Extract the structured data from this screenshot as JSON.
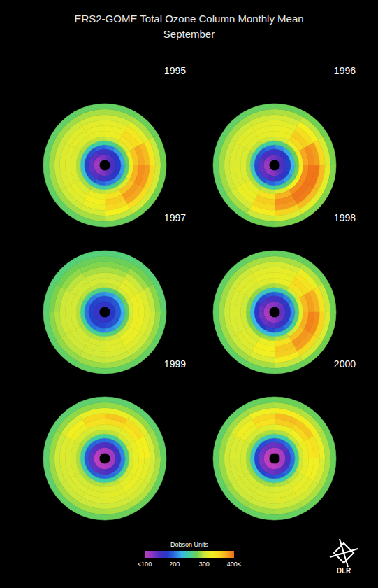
{
  "chart_data": {
    "type": "heatmap",
    "title": "ERS2-GOME Total Ozone Column Monthly Mean",
    "subtitle": "September",
    "tick_labels": false,
    "grid": false,
    "lat_lim": [
      -90,
      0
    ],
    "lat_edges": [
      -82,
      -74,
      -66,
      -60,
      -54,
      -48,
      -40,
      -32,
      -24,
      -16,
      -8,
      0
    ],
    "lon_edges": [
      0,
      30,
      60,
      90,
      120,
      150,
      180,
      210,
      240,
      270,
      300,
      330,
      360
    ],
    "panels": [
      {
        "title": "1995",
        "values": [
          [
            140,
            145,
            150,
            150,
            145,
            140,
            130,
            120,
            115,
            115,
            120,
            130
          ],
          [
            165,
            170,
            175,
            175,
            170,
            165,
            155,
            145,
            140,
            140,
            145,
            155
          ],
          [
            205,
            215,
            220,
            215,
            210,
            205,
            195,
            185,
            180,
            180,
            185,
            195
          ],
          [
            255,
            265,
            270,
            265,
            260,
            255,
            245,
            240,
            235,
            235,
            240,
            250
          ],
          [
            300,
            310,
            320,
            320,
            310,
            300,
            295,
            290,
            290,
            290,
            292,
            295
          ],
          [
            320,
            340,
            360,
            370,
            360,
            340,
            320,
            310,
            308,
            308,
            310,
            315
          ],
          [
            320,
            345,
            375,
            385,
            380,
            355,
            325,
            315,
            312,
            312,
            314,
            316
          ],
          [
            315,
            335,
            365,
            380,
            375,
            350,
            320,
            312,
            310,
            310,
            312,
            314
          ],
          [
            305,
            315,
            335,
            350,
            345,
            325,
            305,
            302,
            300,
            300,
            302,
            304
          ],
          [
            290,
            292,
            300,
            305,
            305,
            298,
            290,
            288,
            288,
            288,
            288,
            290
          ],
          [
            270,
            272,
            275,
            275,
            275,
            272,
            270,
            268,
            268,
            268,
            268,
            270
          ]
        ]
      },
      {
        "title": "1996",
        "values": [
          [
            140,
            145,
            150,
            150,
            145,
            135,
            125,
            118,
            115,
            118,
            125,
            135
          ],
          [
            165,
            172,
            178,
            178,
            172,
            162,
            150,
            142,
            140,
            142,
            150,
            158
          ],
          [
            210,
            220,
            225,
            222,
            215,
            205,
            195,
            185,
            182,
            185,
            190,
            200
          ],
          [
            260,
            270,
            275,
            272,
            265,
            258,
            248,
            240,
            238,
            240,
            245,
            252
          ],
          [
            305,
            320,
            330,
            330,
            325,
            312,
            298,
            292,
            290,
            290,
            295,
            300
          ],
          [
            320,
            350,
            375,
            385,
            385,
            370,
            340,
            315,
            308,
            308,
            312,
            315
          ],
          [
            318,
            355,
            385,
            395,
            395,
            385,
            355,
            320,
            312,
            310,
            314,
            316
          ],
          [
            315,
            345,
            380,
            395,
            392,
            380,
            350,
            318,
            310,
            310,
            312,
            314
          ],
          [
            305,
            325,
            350,
            365,
            365,
            352,
            330,
            305,
            300,
            300,
            302,
            304
          ],
          [
            292,
            298,
            308,
            315,
            315,
            310,
            300,
            290,
            288,
            288,
            288,
            290
          ],
          [
            272,
            275,
            278,
            280,
            280,
            278,
            274,
            270,
            268,
            268,
            268,
            270
          ]
        ]
      },
      {
        "title": "1997",
        "values": [
          [
            170,
            172,
            175,
            175,
            172,
            170,
            168,
            165,
            165,
            165,
            168,
            170
          ],
          [
            185,
            188,
            190,
            190,
            188,
            185,
            180,
            178,
            178,
            178,
            180,
            183
          ],
          [
            215,
            222,
            225,
            222,
            218,
            212,
            205,
            200,
            200,
            200,
            205,
            210
          ],
          [
            262,
            268,
            270,
            268,
            265,
            260,
            255,
            250,
            250,
            250,
            255,
            258
          ],
          [
            298,
            305,
            308,
            306,
            302,
            298,
            294,
            292,
            292,
            292,
            294,
            296
          ],
          [
            305,
            315,
            320,
            320,
            318,
            312,
            306,
            304,
            304,
            304,
            304,
            304
          ],
          [
            300,
            312,
            318,
            320,
            318,
            312,
            306,
            304,
            304,
            304,
            302,
            300
          ],
          [
            290,
            300,
            310,
            312,
            312,
            308,
            304,
            302,
            302,
            300,
            296,
            290
          ],
          [
            280,
            288,
            298,
            302,
            302,
            300,
            298,
            296,
            294,
            290,
            284,
            280
          ],
          [
            272,
            276,
            282,
            286,
            288,
            288,
            286,
            284,
            282,
            278,
            274,
            272
          ],
          [
            262,
            264,
            266,
            268,
            270,
            270,
            270,
            268,
            266,
            264,
            262,
            262
          ]
        ]
      },
      {
        "title": "1998",
        "values": [
          [
            130,
            135,
            140,
            140,
            135,
            128,
            120,
            112,
            110,
            112,
            118,
            125
          ],
          [
            158,
            165,
            170,
            170,
            165,
            155,
            145,
            138,
            135,
            138,
            145,
            152
          ],
          [
            195,
            205,
            212,
            210,
            202,
            192,
            182,
            175,
            172,
            175,
            182,
            190
          ],
          [
            245,
            255,
            262,
            260,
            252,
            242,
            232,
            228,
            226,
            228,
            232,
            240
          ],
          [
            292,
            305,
            315,
            315,
            305,
            292,
            285,
            280,
            278,
            280,
            284,
            288
          ],
          [
            318,
            340,
            365,
            372,
            362,
            340,
            318,
            305,
            302,
            302,
            306,
            312
          ],
          [
            318,
            348,
            378,
            390,
            382,
            358,
            325,
            312,
            308,
            308,
            312,
            315
          ],
          [
            315,
            340,
            370,
            385,
            378,
            355,
            322,
            310,
            308,
            308,
            310,
            313
          ],
          [
            305,
            320,
            340,
            352,
            348,
            330,
            308,
            302,
            300,
            300,
            302,
            304
          ],
          [
            290,
            294,
            302,
            308,
            306,
            298,
            290,
            288,
            288,
            288,
            288,
            290
          ],
          [
            270,
            272,
            275,
            276,
            275,
            272,
            270,
            268,
            268,
            268,
            268,
            270
          ]
        ]
      },
      {
        "title": "1999",
        "values": [
          [
            110,
            112,
            115,
            115,
            112,
            108,
            105,
            102,
            100,
            102,
            105,
            108
          ],
          [
            150,
            155,
            158,
            158,
            155,
            150,
            145,
            140,
            140,
            140,
            145,
            148
          ],
          [
            200,
            205,
            208,
            206,
            202,
            198,
            194,
            190,
            190,
            190,
            194,
            198
          ],
          [
            252,
            258,
            260,
            258,
            255,
            250,
            246,
            244,
            244,
            244,
            246,
            250
          ],
          [
            295,
            302,
            306,
            304,
            300,
            296,
            292,
            290,
            290,
            290,
            292,
            294
          ],
          [
            312,
            315,
            318,
            318,
            315,
            310,
            306,
            304,
            304,
            304,
            306,
            310
          ],
          [
            345,
            335,
            325,
            320,
            318,
            314,
            310,
            308,
            308,
            310,
            320,
            340
          ],
          [
            360,
            345,
            325,
            315,
            312,
            310,
            308,
            306,
            306,
            310,
            325,
            350
          ],
          [
            320,
            315,
            308,
            305,
            304,
            302,
            300,
            300,
            300,
            302,
            308,
            318
          ],
          [
            285,
            285,
            288,
            292,
            294,
            292,
            290,
            288,
            286,
            285,
            284,
            284
          ],
          [
            266,
            266,
            268,
            270,
            272,
            272,
            270,
            268,
            266,
            266,
            266,
            266
          ]
        ]
      },
      {
        "title": "2000",
        "values": [
          [
            105,
            108,
            110,
            112,
            110,
            106,
            102,
            100,
            98,
            100,
            102,
            104
          ],
          [
            140,
            145,
            150,
            150,
            148,
            142,
            136,
            132,
            130,
            132,
            135,
            138
          ],
          [
            192,
            198,
            202,
            200,
            196,
            190,
            185,
            180,
            178,
            180,
            184,
            188
          ],
          [
            245,
            250,
            254,
            252,
            248,
            244,
            240,
            236,
            236,
            236,
            240,
            242
          ],
          [
            292,
            298,
            302,
            300,
            296,
            292,
            288,
            286,
            286,
            286,
            288,
            290
          ],
          [
            318,
            322,
            320,
            316,
            312,
            308,
            305,
            304,
            304,
            304,
            306,
            312
          ],
          [
            355,
            350,
            335,
            322,
            316,
            312,
            308,
            306,
            306,
            308,
            318,
            340
          ],
          [
            365,
            360,
            340,
            322,
            314,
            310,
            306,
            305,
            305,
            308,
            322,
            350
          ],
          [
            330,
            330,
            318,
            308,
            304,
            302,
            300,
            300,
            300,
            302,
            310,
            322
          ],
          [
            292,
            294,
            292,
            292,
            292,
            290,
            288,
            286,
            286,
            286,
            288,
            290
          ],
          [
            272,
            272,
            272,
            272,
            272,
            270,
            270,
            268,
            268,
            268,
            268,
            270
          ]
        ]
      }
    ],
    "colorbar": {
      "title": "Dobson Units",
      "range": [
        100,
        400
      ],
      "ticks": [
        {
          "value": 100,
          "label": "<100"
        },
        200,
        300,
        {
          "value": 400,
          "label": "400<"
        }
      ],
      "colors": [
        "#c040c0",
        "#8a35c0",
        "#4a30c0",
        "#2838c8",
        "#2a70e0",
        "#3ab8e8",
        "#40d0a0",
        "#70d050",
        "#cce83a",
        "#f4f020",
        "#f6d820",
        "#f6a820",
        "#f06a18"
      ]
    },
    "logo": "DLR"
  }
}
